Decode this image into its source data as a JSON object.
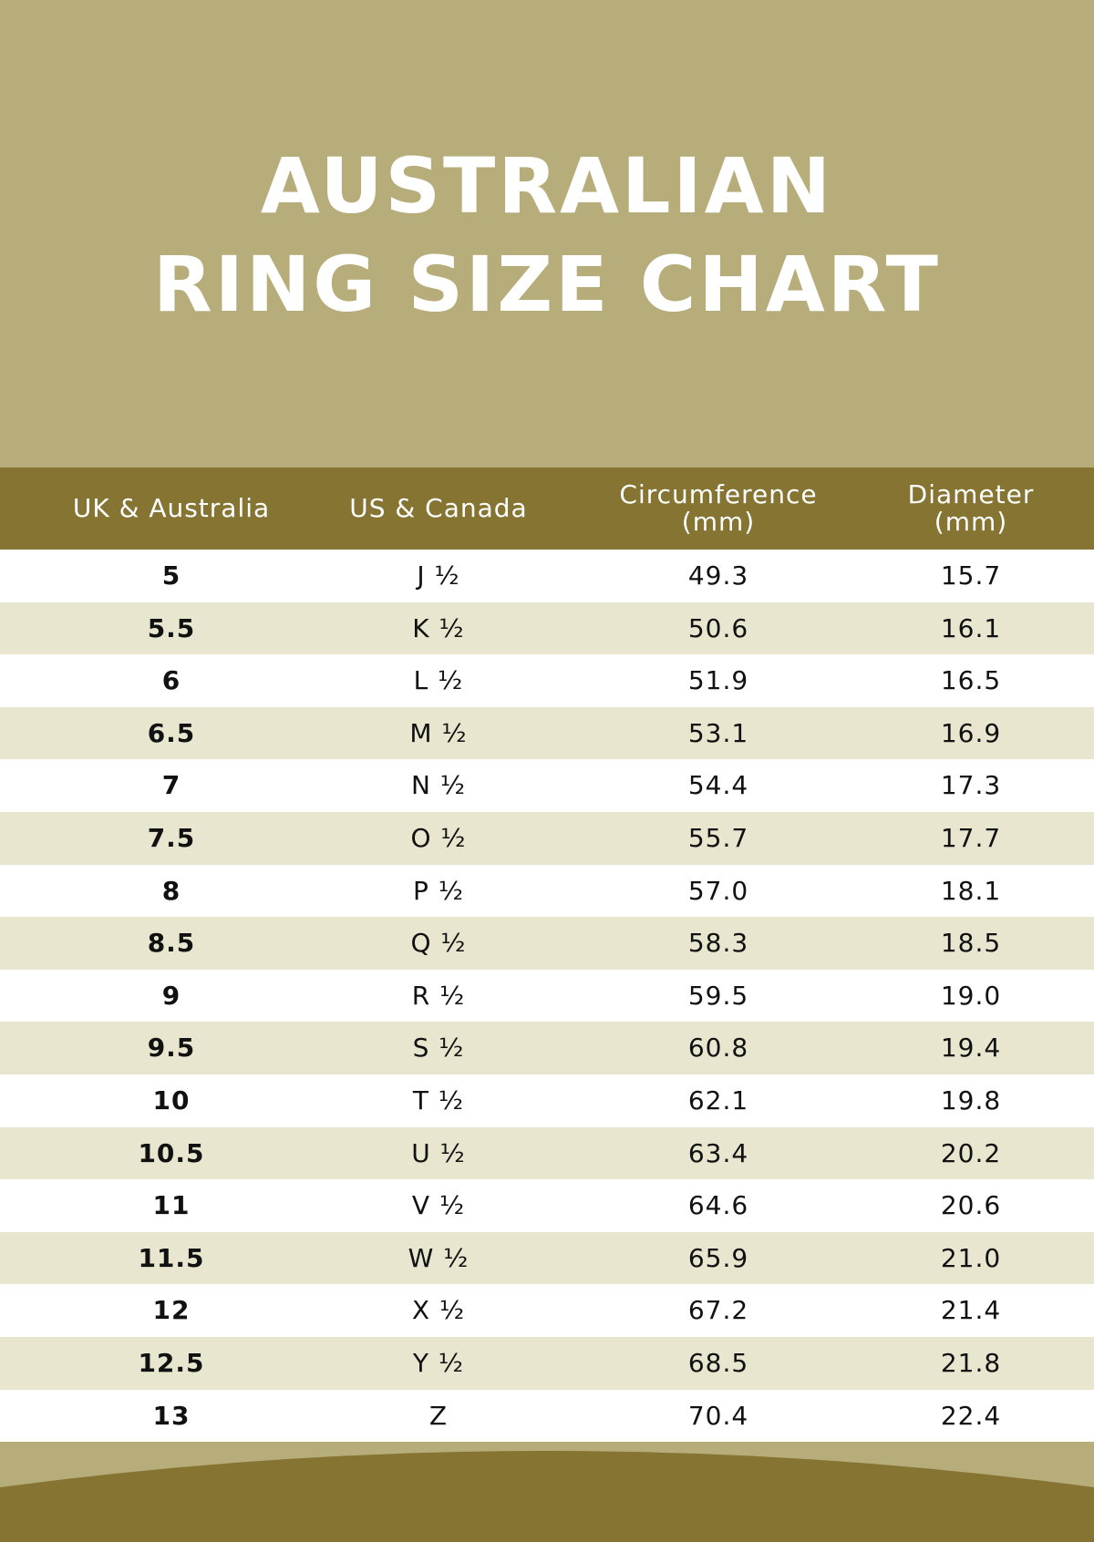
{
  "header": {
    "title": "AUSTRALIAN RING SIZE CHART"
  },
  "table": {
    "columns": [
      "UK & Australia",
      "US & Canada",
      "Circumference (mm)",
      "Diameter (mm)"
    ],
    "rows": [
      [
        "5",
        "J ½",
        "49.3",
        "15.7"
      ],
      [
        "5.5",
        "K ½",
        "50.6",
        "16.1"
      ],
      [
        "6",
        "L ½",
        "51.9",
        "16.5"
      ],
      [
        "6.5",
        "M ½",
        "53.1",
        "16.9"
      ],
      [
        "7",
        "N ½",
        "54.4",
        "17.3"
      ],
      [
        "7.5",
        "O ½",
        "55.7",
        "17.7"
      ],
      [
        "8",
        "P ½",
        "57.0",
        "18.1"
      ],
      [
        "8.5",
        "Q ½",
        "58.3",
        "18.5"
      ],
      [
        "9",
        "R ½",
        "59.5",
        "19.0"
      ],
      [
        "9.5",
        "S ½",
        "60.8",
        "19.4"
      ],
      [
        "10",
        "T ½",
        "62.1",
        "19.8"
      ],
      [
        "10.5",
        "U ½",
        "63.4",
        "20.2"
      ],
      [
        "11",
        "V ½",
        "64.6",
        "20.6"
      ],
      [
        "11.5",
        "W ½",
        "65.9",
        "21.0"
      ],
      [
        "12",
        "X ½",
        "67.2",
        "21.4"
      ],
      [
        "12.5",
        "Y ½",
        "68.5",
        "21.8"
      ],
      [
        "13",
        "Z",
        "70.4",
        "22.4"
      ]
    ]
  }
}
